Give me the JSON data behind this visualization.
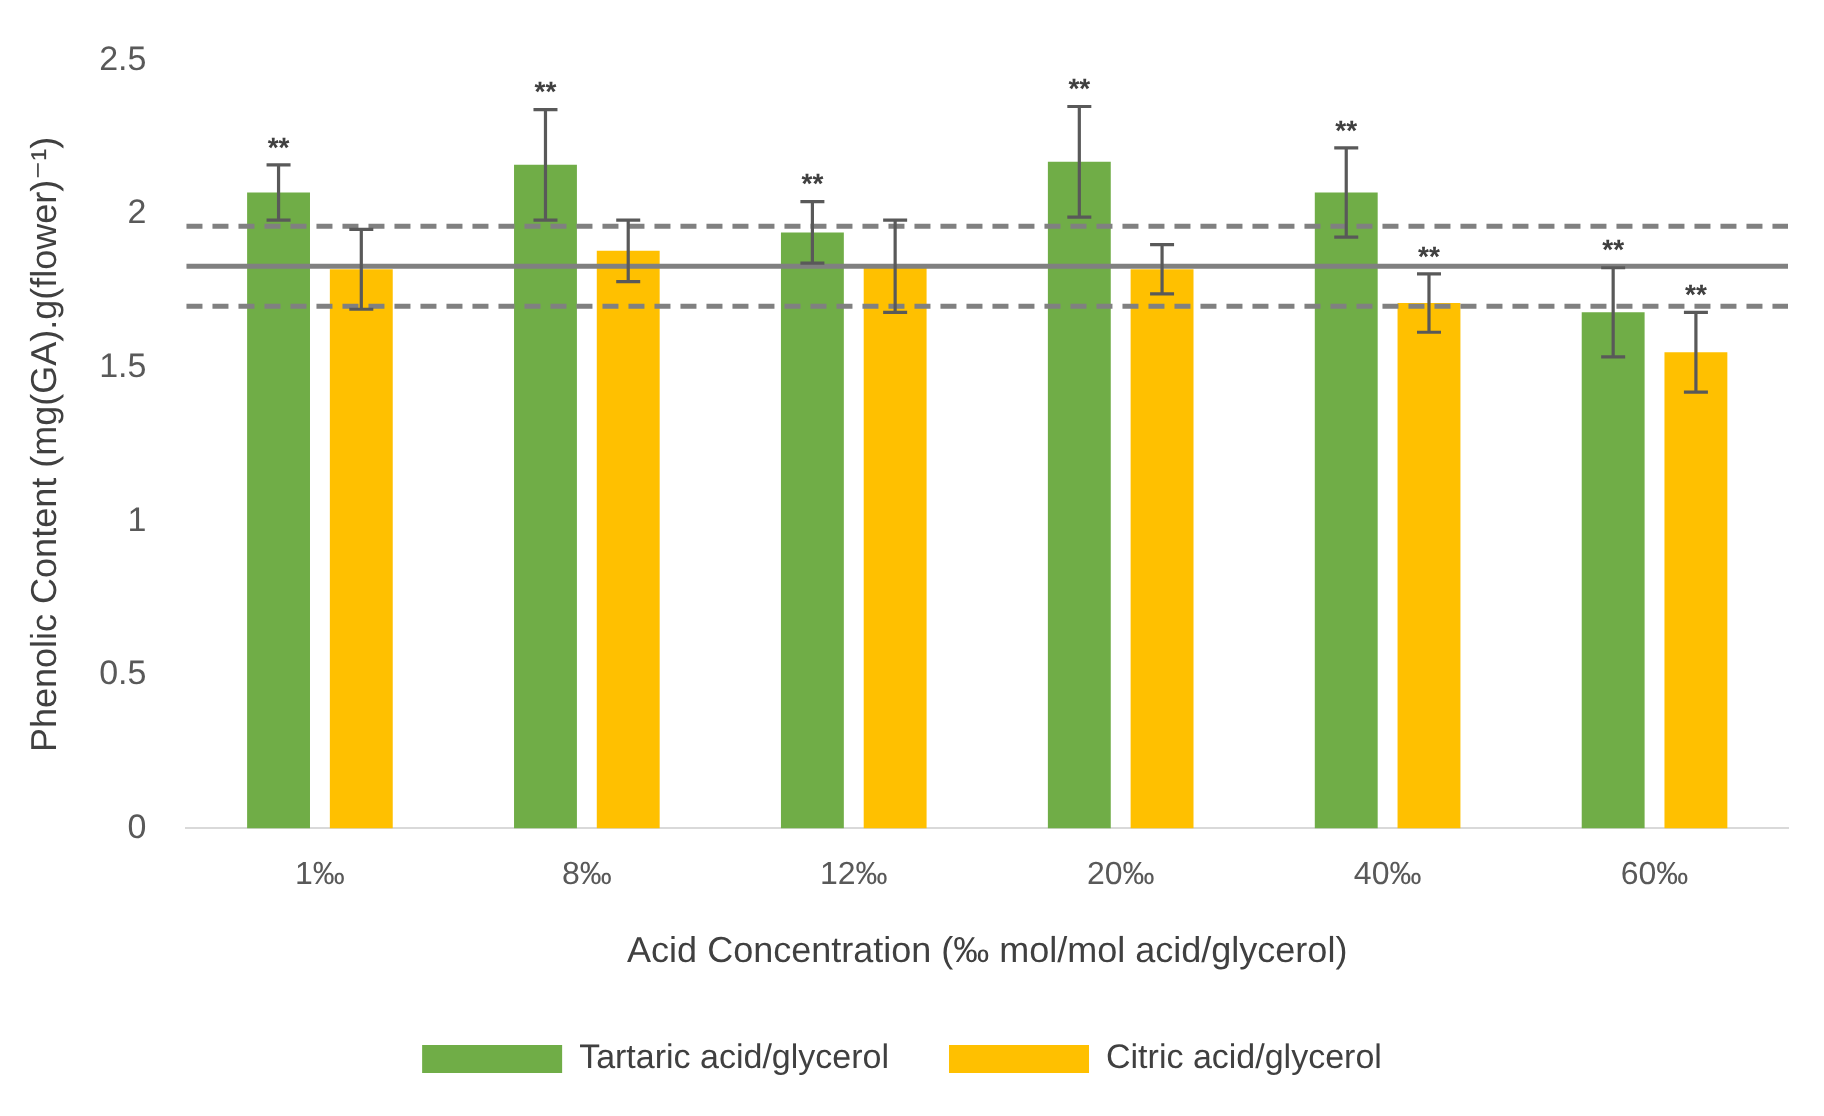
{
  "chart_data": {
    "type": "bar",
    "xlabel": "Acid Concentration (‰ mol/mol acid/glycerol)",
    "ylabel": "Phenolic Content (mg(GA).g(flower)⁻¹)",
    "categories": [
      "1‰",
      "8‰",
      "12‰",
      "20‰",
      "40‰",
      "60‰"
    ],
    "series": [
      {
        "name": "Tartaric acid/glycerol",
        "color": "#70ad47",
        "values": [
          2.07,
          2.16,
          1.94,
          2.17,
          2.07,
          1.68
        ],
        "errors": [
          0.09,
          0.18,
          0.1,
          0.18,
          0.145,
          0.145
        ],
        "value_labels": [
          "**",
          "**",
          "**",
          "**",
          "**",
          "**"
        ]
      },
      {
        "name": "Citric acid/glycerol",
        "color": "#ffc000",
        "values": [
          1.82,
          1.88,
          1.83,
          1.82,
          1.71,
          1.55
        ],
        "errors": [
          0.13,
          0.1,
          0.15,
          0.08,
          0.095,
          0.13
        ],
        "value_labels": [
          null,
          null,
          null,
          null,
          "**",
          "**"
        ]
      }
    ],
    "ylim": [
      0,
      2.5
    ],
    "yticks": [
      0,
      0.5,
      1,
      1.5,
      2,
      2.5
    ],
    "grid": false,
    "legend": "bottom",
    "ref_lines": [
      {
        "axis": "y",
        "value": 1.83,
        "color": "#808080",
        "line_style": "solid"
      },
      {
        "axis": "y",
        "value": 1.96,
        "color": "#808080",
        "line_style": "dashed"
      },
      {
        "axis": "y",
        "value": 1.7,
        "color": "#808080",
        "line_style": "dashed"
      }
    ]
  }
}
